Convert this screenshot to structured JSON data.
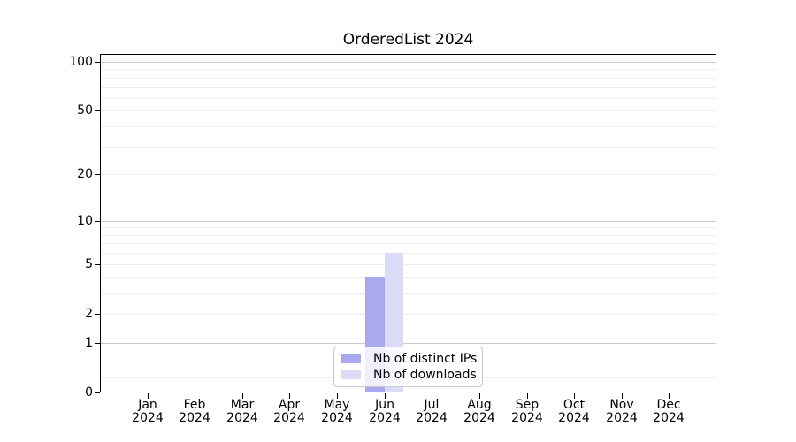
{
  "figure": {
    "background": "#ffffff"
  },
  "chart_data": {
    "type": "bar",
    "title": "OrderedList 2024",
    "categories": [
      "Jan 2024",
      "Feb 2024",
      "Mar 2024",
      "Apr 2024",
      "May 2024",
      "Jun 2024",
      "Jul 2024",
      "Aug 2024",
      "Sep 2024",
      "Oct 2024",
      "Nov 2024",
      "Dec 2024"
    ],
    "series": [
      {
        "name": "Nb of distinct IPs",
        "color": "#a9a9ef",
        "values": [
          0,
          0,
          0,
          0,
          0,
          4,
          0,
          0,
          0,
          0,
          0,
          0
        ]
      },
      {
        "name": "Nb of downloads",
        "color": "#dbdbf7",
        "values": [
          0,
          0,
          0,
          0,
          0,
          6,
          0,
          0,
          0,
          0,
          0,
          0
        ]
      }
    ],
    "xlabel": "",
    "ylabel": "",
    "yscale": "log1p",
    "ylim": [
      0,
      111.5
    ],
    "yticks": [
      0,
      1,
      2,
      5,
      10,
      20,
      50,
      100
    ],
    "major_gridlines": [
      1,
      10,
      100
    ],
    "minor_gridlines": [
      0.24,
      2,
      3,
      4,
      5,
      6,
      7,
      8,
      9,
      20,
      30,
      40,
      50,
      60,
      70,
      80,
      90
    ],
    "grid_major_color": "#c9c9c9",
    "grid_minor_color": "#ececec",
    "axis_color": "#000000",
    "legend": {
      "position": "lower center",
      "labels": [
        "Nb of distinct IPs",
        "Nb of downloads"
      ]
    }
  }
}
